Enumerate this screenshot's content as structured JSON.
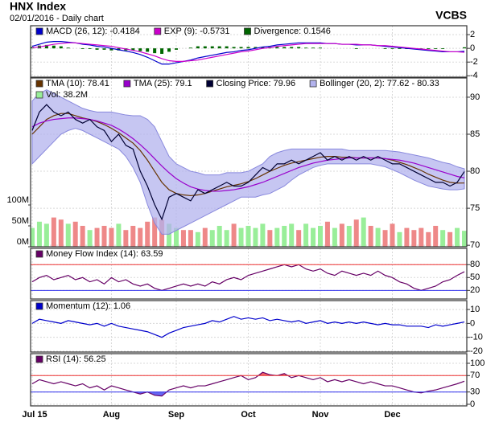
{
  "title": "HNX Index",
  "subtitle": "02/01/2016 - Daily chart",
  "source": "VCBS",
  "chart_data": [
    {
      "type": "line",
      "ylim": [
        -4.2,
        3.3
      ],
      "yticks": [
        2,
        0,
        -2,
        -4
      ],
      "grid": true,
      "series": [
        {
          "name": "MACD (26, 12): -0.4184",
          "color": "#0000cc",
          "kind": "line",
          "values": [
            0.3,
            0.6,
            0.9,
            1.0,
            1.0,
            0.9,
            0.8,
            0.6,
            0.5,
            0.3,
            0.2,
            0.0,
            -0.2,
            -0.4,
            -0.6,
            -0.9,
            -1.3,
            -1.8,
            -2.3,
            -2.3,
            -2.1,
            -1.9,
            -1.7,
            -1.4,
            -1.2,
            -1.0,
            -0.8,
            -0.6,
            -0.5,
            -0.3,
            -0.2,
            0.0,
            0.2,
            0.3,
            0.5,
            0.6,
            0.7,
            0.8,
            0.8,
            0.8,
            0.8,
            0.7,
            0.7,
            0.6,
            0.6,
            0.5,
            0.5,
            0.5,
            0.4,
            0.3,
            0.2,
            0.1,
            0.0,
            -0.1,
            -0.2,
            -0.3,
            -0.4,
            -0.5,
            -0.5,
            -0.5,
            -0.4184
          ]
        },
        {
          "name": "EXP (9): -0.5731",
          "color": "#cc00cc",
          "kind": "line",
          "values": [
            0.1,
            0.2,
            0.4,
            0.6,
            0.7,
            0.8,
            0.8,
            0.7,
            0.6,
            0.5,
            0.4,
            0.3,
            0.1,
            -0.1,
            -0.3,
            -0.5,
            -0.8,
            -1.1,
            -1.5,
            -1.8,
            -1.9,
            -1.9,
            -1.8,
            -1.7,
            -1.5,
            -1.3,
            -1.1,
            -0.9,
            -0.7,
            -0.5,
            -0.4,
            -0.2,
            0.0,
            0.1,
            0.3,
            0.4,
            0.5,
            0.6,
            0.7,
            0.7,
            0.7,
            0.7,
            0.7,
            0.6,
            0.6,
            0.6,
            0.5,
            0.5,
            0.4,
            0.4,
            0.3,
            0.2,
            0.1,
            0.0,
            -0.1,
            -0.2,
            -0.3,
            -0.4,
            -0.5,
            -0.5,
            -0.5731
          ]
        },
        {
          "name": "Divergence: 0.1546",
          "color": "#006600",
          "kind": "bar",
          "values": [
            0.2,
            0.4,
            0.5,
            0.4,
            0.3,
            0.1,
            0,
            -0.1,
            -0.1,
            -0.2,
            -0.2,
            -0.3,
            -0.3,
            -0.3,
            -0.3,
            -0.4,
            -0.5,
            -0.7,
            -0.8,
            -0.5,
            -0.2,
            0,
            0.1,
            0.3,
            0.3,
            0.3,
            0.3,
            0.3,
            0.2,
            0.2,
            0.2,
            0.2,
            0.2,
            0.2,
            0.2,
            0.2,
            0.2,
            0.2,
            0.1,
            0.1,
            0.1,
            0,
            0,
            0,
            0,
            -0.1,
            0,
            0,
            0,
            -0.1,
            -0.1,
            -0.1,
            -0.1,
            -0.1,
            -0.1,
            -0.1,
            -0.1,
            -0.1,
            0,
            0,
            0.1546
          ]
        }
      ]
    },
    {
      "type": "line",
      "ylim": [
        69.8,
        92.6
      ],
      "yticks": [
        90,
        85,
        80,
        75,
        70
      ],
      "grid": true,
      "y2lim": [
        0,
        404
      ],
      "y2ticks": [
        {
          "value": 100,
          "label": "100M"
        },
        {
          "value": 50,
          "label": "50M"
        },
        {
          "value": 0,
          "label": "0M"
        }
      ],
      "series": [
        {
          "name": "TMA (10): 78.41",
          "color": "#663300",
          "kind": "line",
          "values": [
            85,
            86,
            87,
            87.5,
            87.8,
            87.8,
            87.5,
            87.2,
            87,
            86.7,
            86.3,
            85.8,
            85.2,
            84.5,
            83.8,
            82.8,
            81.5,
            80,
            78.5,
            77.5,
            77,
            76.8,
            76.7,
            76.8,
            77,
            77.3,
            77.6,
            77.9,
            78.1,
            78.3,
            78.6,
            79,
            79.5,
            80,
            80.4,
            80.8,
            81.1,
            81.3,
            81.5,
            81.7,
            81.9,
            82,
            82,
            81.9,
            81.9,
            81.8,
            81.8,
            81.8,
            81.8,
            81.7,
            81.5,
            81.2,
            80.9,
            80.5,
            80.1,
            79.6,
            79.2,
            78.8,
            78.5,
            78.4,
            78.41
          ]
        },
        {
          "name": "TMA (25): 79.1",
          "color": "#9900cc",
          "kind": "line",
          "values": [
            86,
            86.5,
            86.8,
            87,
            87.1,
            87.2,
            87.2,
            87.1,
            87,
            86.8,
            86.5,
            86.2,
            85.7,
            85.1,
            84.4,
            83.6,
            82.7,
            81.7,
            80.7,
            79.8,
            79,
            78.4,
            77.9,
            77.6,
            77.4,
            77.3,
            77.3,
            77.4,
            77.5,
            77.7,
            77.9,
            78.2,
            78.5,
            78.9,
            79.3,
            79.7,
            80.1,
            80.5,
            80.8,
            81.1,
            81.3,
            81.5,
            81.6,
            81.7,
            81.8,
            81.8,
            81.8,
            81.8,
            81.8,
            81.7,
            81.6,
            81.5,
            81.3,
            81.1,
            80.8,
            80.5,
            80.2,
            79.9,
            79.6,
            79.3,
            79.1
          ]
        },
        {
          "name": "Closing Price: 79.96",
          "color": "#000033",
          "kind": "line",
          "values": [
            85.5,
            88,
            89,
            88,
            87.5,
            88,
            87,
            86.5,
            87,
            86,
            85.5,
            84,
            85,
            83.5,
            83,
            80,
            78,
            75.5,
            73.5,
            76.5,
            77,
            76.5,
            76,
            77.5,
            77,
            77.5,
            78,
            78.5,
            78,
            78,
            78.5,
            79.5,
            80.5,
            80,
            81,
            81,
            81.5,
            81,
            81.5,
            82,
            82.5,
            81.5,
            82,
            81.5,
            82,
            81.5,
            82,
            81.5,
            82,
            81.5,
            81,
            81,
            80.5,
            80,
            79.5,
            79,
            78.5,
            78.5,
            78,
            78.5,
            79.96
          ]
        },
        {
          "name": "Bollinger (20, 2): 77.62 - 80.33",
          "color": "#b3b3ee",
          "kind": "band",
          "upper": [
            89.5,
            90.5,
            91,
            90.5,
            90,
            89.5,
            89,
            88.5,
            88.2,
            88,
            88,
            88,
            87.8,
            87.6,
            87.5,
            87.5,
            87,
            86,
            84,
            82,
            81,
            80.5,
            80,
            79.8,
            79.5,
            79.5,
            79.5,
            79.8,
            79.8,
            79.8,
            80,
            80.5,
            81,
            82,
            82.5,
            82.8,
            83,
            83,
            83,
            83,
            83,
            83,
            83,
            83,
            82.8,
            82.8,
            82.8,
            82.8,
            82.8,
            82.8,
            82.7,
            82.6,
            82.4,
            82.2,
            82,
            81.8,
            81.5,
            81.2,
            81,
            80.6,
            80.33
          ],
          "lower": [
            81,
            82,
            83,
            84,
            85,
            85.5,
            85.8,
            85.5,
            85,
            84.5,
            84,
            83.5,
            83,
            82,
            80.5,
            78.5,
            75.5,
            73,
            71.5,
            71.5,
            72,
            72.5,
            73,
            73.5,
            74,
            74.5,
            75,
            75.5,
            76,
            76.5,
            76.5,
            76.5,
            76.8,
            77,
            77.5,
            78,
            78.8,
            79.5,
            80,
            80.5,
            80.8,
            81,
            81,
            81,
            81,
            81,
            81,
            81,
            80.8,
            80.6,
            80.2,
            79.8,
            79.3,
            78.8,
            78.4,
            78,
            77.8,
            77.6,
            77.5,
            77.5,
            77.62
          ]
        },
        {
          "name": "Vol: 38.2M",
          "color": "#99ee99",
          "down_color": "#ee8888",
          "kind": "bar",
          "axis": "y2",
          "values": [
            45,
            60,
            55,
            70,
            65,
            55,
            60,
            50,
            40,
            45,
            50,
            45,
            55,
            40,
            50,
            45,
            60,
            70,
            65,
            55,
            45,
            40,
            40,
            35,
            45,
            40,
            50,
            40,
            55,
            45,
            50,
            45,
            55,
            40,
            45,
            50,
            55,
            40,
            55,
            45,
            50,
            60,
            45,
            55,
            50,
            65,
            70,
            50,
            45,
            40,
            55,
            35,
            45,
            40,
            45,
            35,
            50,
            40,
            35,
            45,
            38.2
          ]
        }
      ]
    },
    {
      "type": "line",
      "ylim": [
        0,
        118
      ],
      "yticks": [
        80,
        50,
        20
      ],
      "grid": true,
      "ref_lines": [
        {
          "value": 80,
          "color": "#ee3333"
        },
        {
          "value": 20,
          "color": "#3333ee"
        }
      ],
      "series": [
        {
          "name": "Money Flow Index (14): 63.59",
          "color": "#660066",
          "kind": "line",
          "values": [
            40,
            50,
            55,
            45,
            50,
            55,
            45,
            50,
            40,
            45,
            35,
            50,
            40,
            45,
            35,
            30,
            35,
            25,
            20,
            25,
            30,
            35,
            30,
            35,
            30,
            40,
            35,
            45,
            50,
            45,
            55,
            60,
            65,
            70,
            75,
            80,
            75,
            80,
            70,
            65,
            70,
            60,
            55,
            65,
            60,
            55,
            60,
            55,
            65,
            55,
            50,
            40,
            35,
            25,
            20,
            25,
            30,
            40,
            45,
            55,
            63.59
          ]
        }
      ]
    },
    {
      "type": "line",
      "ylim": [
        -20.6,
        16.4
      ],
      "yticks": [
        10,
        0,
        -10,
        -20
      ],
      "grid": true,
      "series": [
        {
          "name": "Momentum (12): 1.06",
          "color": "#0000cc",
          "kind": "line",
          "values": [
            0,
            3,
            2,
            1,
            0,
            2,
            1,
            0,
            -1,
            0,
            -2,
            0,
            -2,
            -3,
            -4,
            -5,
            -6,
            -8,
            -10,
            -7,
            -5,
            -3,
            -2,
            -1,
            0,
            2,
            1,
            3,
            5,
            3,
            4,
            3,
            4,
            2,
            3,
            2,
            1,
            2,
            0,
            1,
            2,
            0,
            1,
            0,
            1,
            0,
            1,
            0,
            -1,
            0,
            -1,
            -1,
            -2,
            -2,
            -2,
            -3,
            -1,
            -2,
            -1,
            0,
            1.06
          ]
        }
      ]
    },
    {
      "type": "line",
      "ylim": [
        -3.9,
        123.5
      ],
      "yticks": [
        100,
        70,
        30,
        0
      ],
      "grid": true,
      "ref_lines": [
        {
          "value": 70,
          "color": "#ee3333",
          "fill": "above"
        },
        {
          "value": 30,
          "color": "#3333ee",
          "fill": "below"
        }
      ],
      "categories": [
        "Jul 15",
        null,
        null,
        null,
        null,
        null,
        null,
        null,
        null,
        null,
        null,
        "Aug",
        null,
        null,
        null,
        null,
        null,
        null,
        null,
        null,
        "Sep",
        null,
        null,
        null,
        null,
        null,
        null,
        null,
        null,
        null,
        "Oct",
        null,
        null,
        null,
        null,
        null,
        null,
        null,
        null,
        null,
        "Nov",
        null,
        null,
        null,
        null,
        null,
        null,
        null,
        null,
        null,
        "Dec",
        null,
        null,
        null,
        null,
        null,
        null,
        null,
        null,
        null,
        null
      ],
      "series": [
        {
          "name": "RSI (14): 56.25",
          "color": "#660066",
          "kind": "line",
          "values": [
            50,
            60,
            55,
            50,
            55,
            50,
            45,
            50,
            40,
            45,
            35,
            45,
            40,
            35,
            30,
            25,
            30,
            22,
            20,
            35,
            40,
            45,
            40,
            45,
            45,
            50,
            55,
            60,
            65,
            70,
            60,
            65,
            78,
            72,
            70,
            75,
            65,
            70,
            65,
            60,
            65,
            55,
            60,
            55,
            60,
            55,
            50,
            55,
            50,
            45,
            45,
            40,
            35,
            30,
            28,
            32,
            35,
            40,
            45,
            50,
            56.25
          ]
        }
      ]
    }
  ]
}
